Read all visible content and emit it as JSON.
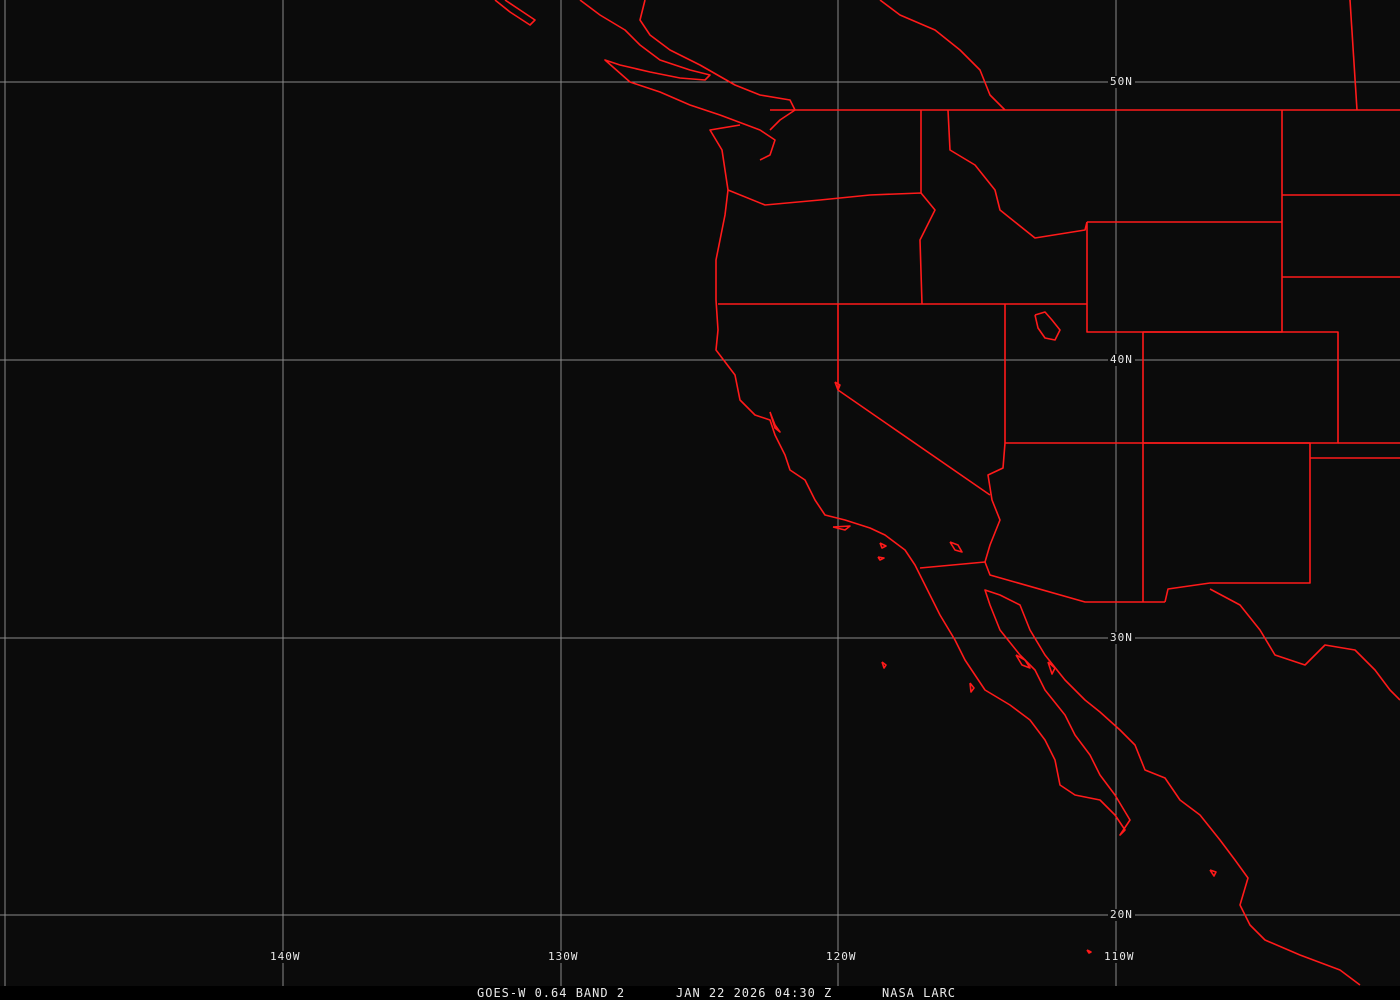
{
  "map": {
    "background_color": "#0b0b0b",
    "grid_color": "#8a8a8a",
    "boundary_color": "#ff1a1a",
    "longitude_labels": [
      "140W",
      "130W",
      "120W",
      "110W"
    ],
    "latitude_labels": [
      "50N",
      "40N",
      "30N",
      "20N"
    ]
  },
  "caption": {
    "satellite": "GOES-W 0.64 BAND 2",
    "datetime": "JAN 22 2026 04:30 Z",
    "source": "NASA LARC"
  }
}
